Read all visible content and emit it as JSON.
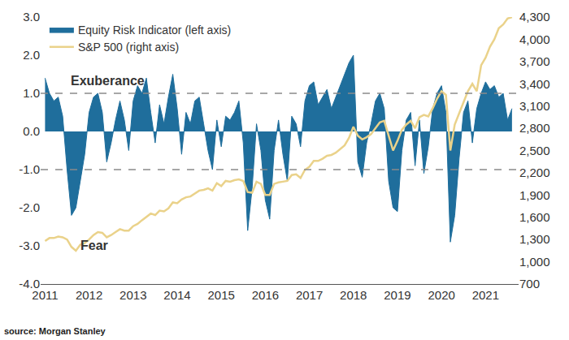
{
  "chart_data": {
    "type": "line",
    "x": [
      2011.0,
      2011.1,
      2011.2,
      2011.3,
      2011.4,
      2011.5,
      2011.6,
      2011.7,
      2011.8,
      2011.9,
      2012.0,
      2012.1,
      2012.2,
      2012.3,
      2012.4,
      2012.5,
      2012.6,
      2012.7,
      2012.8,
      2012.9,
      2013.0,
      2013.1,
      2013.2,
      2013.3,
      2013.4,
      2013.5,
      2013.6,
      2013.7,
      2013.8,
      2013.9,
      2014.0,
      2014.1,
      2014.2,
      2014.3,
      2014.4,
      2014.5,
      2014.6,
      2014.7,
      2014.8,
      2014.9,
      2015.0,
      2015.1,
      2015.2,
      2015.3,
      2015.4,
      2015.5,
      2015.6,
      2015.7,
      2015.8,
      2015.9,
      2016.0,
      2016.1,
      2016.2,
      2016.3,
      2016.4,
      2016.5,
      2016.6,
      2016.7,
      2016.8,
      2016.9,
      2017.0,
      2017.1,
      2017.2,
      2017.3,
      2017.4,
      2017.5,
      2017.6,
      2017.7,
      2017.8,
      2017.9,
      2018.0,
      2018.1,
      2018.2,
      2018.3,
      2018.4,
      2018.5,
      2018.6,
      2018.7,
      2018.8,
      2018.9,
      2019.0,
      2019.1,
      2019.2,
      2019.3,
      2019.4,
      2019.5,
      2019.6,
      2019.7,
      2019.8,
      2019.9,
      2020.0,
      2020.1,
      2020.2,
      2020.3,
      2020.4,
      2020.5,
      2020.6,
      2020.7,
      2020.8,
      2020.9,
      2021.0,
      2021.1,
      2021.2,
      2021.3,
      2021.4,
      2021.5,
      2021.6
    ],
    "series": [
      {
        "name": "Equity Risk Indicator (left axis)",
        "type": "area",
        "color": "#1f6e9c",
        "values": [
          1.4,
          1.0,
          0.8,
          0.9,
          0.4,
          -1.0,
          -2.2,
          -2.0,
          -1.3,
          -0.6,
          0.5,
          0.9,
          1.0,
          0.5,
          -0.8,
          -0.3,
          0.3,
          0.8,
          0.3,
          -0.5,
          0.8,
          1.2,
          1.0,
          1.4,
          0.5,
          -0.3,
          0.7,
          0.2,
          0.9,
          1.5,
          0.6,
          -0.6,
          0.5,
          0.2,
          0.8,
          0.9,
          0.2,
          -0.5,
          -1.0,
          0.3,
          -0.4,
          0.4,
          0.3,
          0.5,
          0.8,
          -0.3,
          -2.6,
          -1.5,
          0.2,
          -0.5,
          -1.8,
          -2.3,
          -0.5,
          0.3,
          -0.6,
          -1.3,
          0.4,
          0.2,
          -0.4,
          0.8,
          1.2,
          1.3,
          0.7,
          0.9,
          1.1,
          0.6,
          0.9,
          1.2,
          1.5,
          1.8,
          2.0,
          -0.8,
          -1.2,
          -0.3,
          0.2,
          0.8,
          1.0,
          0.6,
          -1.3,
          -2.0,
          -2.1,
          -0.5,
          0.3,
          0.5,
          -0.9,
          0.3,
          -1.1,
          -0.4,
          0.6,
          1.0,
          1.2,
          0.5,
          -2.9,
          -2.2,
          -0.7,
          0.5,
          0.8,
          -0.3,
          0.6,
          1.0,
          1.3,
          1.1,
          1.2,
          0.9,
          1.0,
          0.3,
          0.6
        ]
      },
      {
        "name": "S&P 500 (right axis)",
        "type": "line",
        "color": "#ead28a",
        "axis": "y2",
        "values": [
          1280,
          1320,
          1320,
          1340,
          1330,
          1300,
          1200,
          1150,
          1230,
          1250,
          1300,
          1360,
          1400,
          1390,
          1330,
          1360,
          1400,
          1440,
          1420,
          1420,
          1480,
          1510,
          1560,
          1600,
          1650,
          1630,
          1690,
          1680,
          1720,
          1800,
          1790,
          1840,
          1870,
          1880,
          1920,
          1960,
          1970,
          1990,
          1960,
          2060,
          2020,
          2090,
          2080,
          2100,
          2110,
          2090,
          1940,
          1930,
          2080,
          2050,
          1900,
          1900,
          2050,
          2070,
          2080,
          2090,
          2170,
          2180,
          2130,
          2240,
          2280,
          2360,
          2360,
          2390,
          2430,
          2440,
          2470,
          2520,
          2570,
          2670,
          2820,
          2700,
          2650,
          2680,
          2720,
          2800,
          2880,
          2900,
          2700,
          2500,
          2630,
          2780,
          2850,
          2900,
          2800,
          2950,
          2980,
          2960,
          3070,
          3200,
          3300,
          3250,
          2500,
          2850,
          3000,
          3150,
          3300,
          3400,
          3300,
          3650,
          3750,
          3900,
          4000,
          4150,
          4200,
          4280,
          4300
        ]
      }
    ],
    "xlim": [
      2010.9,
      2021.75
    ],
    "xticks": [
      2011,
      2012,
      2013,
      2014,
      2015,
      2016,
      2017,
      2018,
      2019,
      2020,
      2021
    ],
    "ylim": [
      -4,
      3
    ],
    "yticks": [
      {
        "value": -4,
        "label": "-4.0"
      },
      {
        "value": -3,
        "label": "-3.0"
      },
      {
        "value": -2,
        "label": "-2.0"
      },
      {
        "value": -1,
        "label": "-1.0"
      },
      {
        "value": 0,
        "label": "0.0"
      },
      {
        "value": 1,
        "label": "1.0"
      },
      {
        "value": 2,
        "label": "2.0"
      },
      {
        "value": 3,
        "label": "3.0"
      }
    ],
    "y2lim": [
      700,
      4300
    ],
    "y2ticks": [
      700,
      {
        "value": 1000,
        "label": "1,000"
      },
      {
        "value": 1300,
        "label": "1,300"
      },
      {
        "value": 1600,
        "label": "1,600"
      },
      {
        "value": 1900,
        "label": "1,900"
      },
      {
        "value": 2200,
        "label": "2,200"
      },
      {
        "value": 2500,
        "label": "2,500"
      },
      {
        "value": 2800,
        "label": "2,800"
      },
      {
        "value": 3100,
        "label": "3,100"
      },
      {
        "value": 3400,
        "label": "3,400"
      },
      {
        "value": 3700,
        "label": "3,700"
      },
      {
        "value": 4000,
        "label": "4,000"
      },
      {
        "value": 4300,
        "label": "4,300"
      }
    ],
    "reference_lines": [
      1,
      -1
    ],
    "annotations": [
      "Exuberance",
      "Fear"
    ],
    "source": "source: Morgan Stanley",
    "grid": false,
    "legend": "top left"
  }
}
